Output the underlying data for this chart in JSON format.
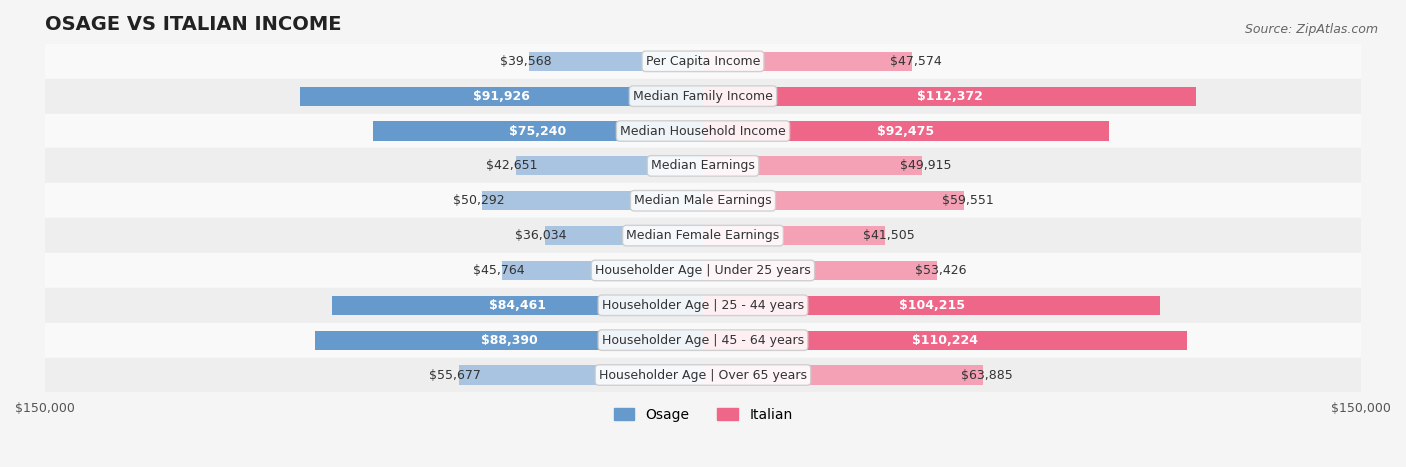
{
  "title": "OSAGE VS ITALIAN INCOME",
  "source": "Source: ZipAtlas.com",
  "categories": [
    "Per Capita Income",
    "Median Family Income",
    "Median Household Income",
    "Median Earnings",
    "Median Male Earnings",
    "Median Female Earnings",
    "Householder Age | Under 25 years",
    "Householder Age | 25 - 44 years",
    "Householder Age | 45 - 64 years",
    "Householder Age | Over 65 years"
  ],
  "osage_values": [
    39568,
    91926,
    75240,
    42651,
    50292,
    36034,
    45764,
    84461,
    88390,
    55677
  ],
  "italian_values": [
    47574,
    112372,
    92475,
    49915,
    59551,
    41505,
    53426,
    104215,
    110224,
    63885
  ],
  "osage_labels": [
    "$39,568",
    "$91,926",
    "$75,240",
    "$42,651",
    "$50,292",
    "$36,034",
    "$45,764",
    "$84,461",
    "$88,390",
    "$55,677"
  ],
  "italian_labels": [
    "$47,574",
    "$112,372",
    "$92,475",
    "$49,915",
    "$59,551",
    "$41,505",
    "$53,426",
    "$104,215",
    "$110,224",
    "$63,885"
  ],
  "osage_color_light": "#a8c4e0",
  "osage_color_dark": "#6699cc",
  "italian_color_light": "#f4a0b5",
  "italian_color_dark": "#ee6688",
  "max_value": 150000,
  "bar_height": 0.55,
  "bg_color": "#f5f5f5",
  "row_bg_light": "#f9f9f9",
  "row_bg_dark": "#eeeeee",
  "label_fontsize": 9,
  "title_fontsize": 14,
  "legend_fontsize": 10
}
